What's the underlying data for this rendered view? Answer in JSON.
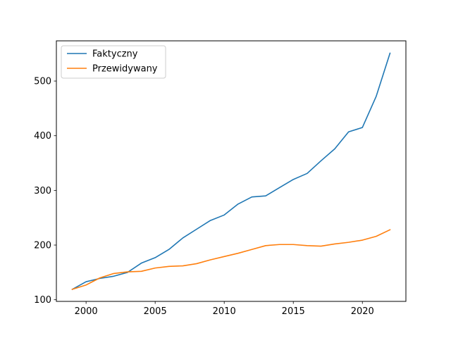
{
  "chart_data": {
    "type": "line",
    "title": "",
    "xlabel": "",
    "ylabel": "",
    "x": [
      1999,
      2000,
      2001,
      2002,
      2003,
      2004,
      2005,
      2006,
      2007,
      2008,
      2009,
      2010,
      2011,
      2012,
      2013,
      2014,
      2015,
      2016,
      2017,
      2018,
      2019,
      2020,
      2021,
      2022
    ],
    "series": [
      {
        "name": "Faktyczny",
        "color": "#1f77b4",
        "values": [
          119,
          133,
          139,
          143,
          150,
          167,
          177,
          192,
          213,
          229,
          245,
          255,
          275,
          288,
          290,
          305,
          320,
          331,
          354,
          376,
          407,
          415,
          472,
          551
        ]
      },
      {
        "name": "Przewidywany",
        "color": "#ff7f0e",
        "values": [
          119,
          127,
          140,
          148,
          151,
          152,
          158,
          161,
          162,
          166,
          173,
          179,
          185,
          192,
          199,
          201,
          201,
          199,
          198,
          202,
          205,
          209,
          216,
          228
        ]
      }
    ],
    "xlim": [
      1997.85,
      2023.15
    ],
    "ylim": [
      97,
      573.5
    ],
    "xticks": [
      2000,
      2005,
      2010,
      2015,
      2020
    ],
    "yticks": [
      100,
      200,
      300,
      400,
      500
    ],
    "grid": false,
    "legend_position": "upper left"
  }
}
